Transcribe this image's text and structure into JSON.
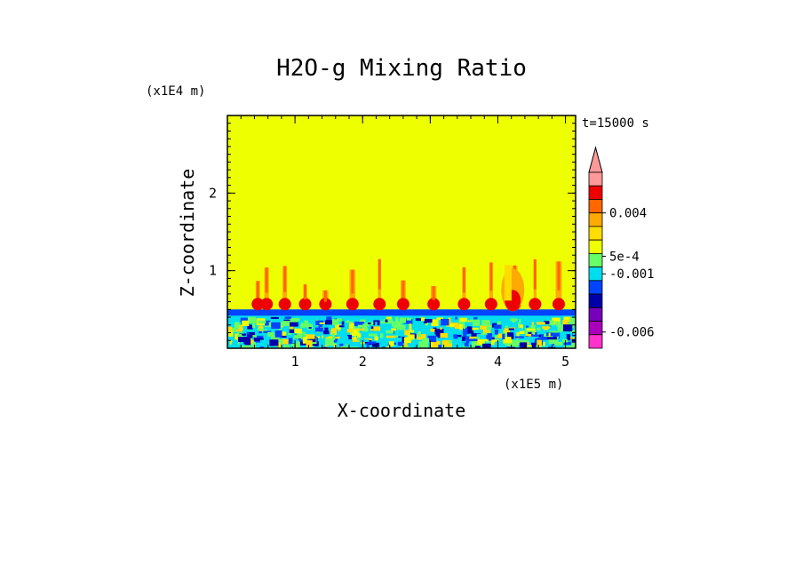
{
  "chart_data": {
    "type": "heatmap",
    "title": "H2O-g Mixing Ratio",
    "xlabel": "X-coordinate",
    "ylabel": "Z-coordinate",
    "x_unit": "(x1E5 m)",
    "y_unit": "(x1E4 m)",
    "time_label": "t=15000 s",
    "xlim": [
      0,
      5.15
    ],
    "ylim": [
      0,
      3.0
    ],
    "x_ticks": [
      1,
      2,
      3,
      4,
      5
    ],
    "y_ticks": [
      1,
      2
    ],
    "background_value_color": "#eeff00",
    "colorbar": {
      "labels": [
        "0.004",
        "5e-4",
        "-0.001",
        "-0.006"
      ],
      "levels": [
        {
          "color": "#ff9999"
        },
        {
          "color": "#ee0000"
        },
        {
          "color": "#ff6600"
        },
        {
          "color": "#ffaa00"
        },
        {
          "color": "#ffdd00"
        },
        {
          "color": "#eeff00"
        },
        {
          "color": "#66ff66"
        },
        {
          "color": "#00ddee"
        },
        {
          "color": "#0044ff"
        },
        {
          "color": "#0000aa"
        },
        {
          "color": "#7700bb"
        },
        {
          "color": "#aa00bb"
        },
        {
          "color": "#ff33cc"
        }
      ]
    },
    "features": {
      "boundary_layer_top": 0.5,
      "plumes_x": [
        0.45,
        0.58,
        0.85,
        1.15,
        1.45,
        1.85,
        2.25,
        2.6,
        3.05,
        3.5,
        3.9,
        4.25,
        4.55,
        4.9
      ]
    }
  }
}
